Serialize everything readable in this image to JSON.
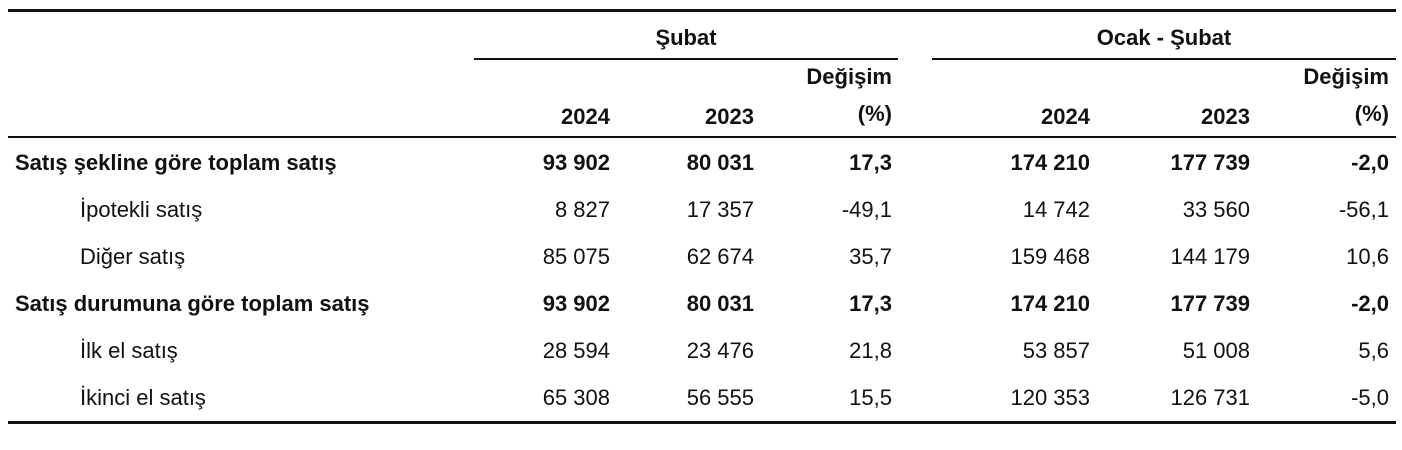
{
  "header": {
    "group1": "Şubat",
    "group2": "Ocak - Şubat",
    "year_a": "2024",
    "year_b": "2023",
    "change_line1": "Değişim",
    "change_line2": "(%)"
  },
  "rows": [
    {
      "label": "Satış şekline göre toplam satış",
      "bold": true,
      "indent": false,
      "values": [
        "93 902",
        "80 031",
        "17,3",
        "174 210",
        "177 739",
        "-2,0"
      ]
    },
    {
      "label": "İpotekli satış",
      "bold": false,
      "indent": true,
      "values": [
        "8 827",
        "17 357",
        "-49,1",
        "14 742",
        "33 560",
        "-56,1"
      ]
    },
    {
      "label": "Diğer satış",
      "bold": false,
      "indent": true,
      "values": [
        "85 075",
        "62 674",
        "35,7",
        "159 468",
        "144 179",
        "10,6"
      ]
    },
    {
      "label": "Satış durumuna göre toplam satış",
      "bold": true,
      "indent": false,
      "values": [
        "93 902",
        "80 031",
        "17,3",
        "174 210",
        "177 739",
        "-2,0"
      ]
    },
    {
      "label": "İlk el satış",
      "bold": false,
      "indent": true,
      "values": [
        "28 594",
        "23 476",
        "21,8",
        "53 857",
        "51 008",
        "5,6"
      ]
    },
    {
      "label": "İkinci el satış",
      "bold": false,
      "indent": true,
      "values": [
        "65 308",
        "56 555",
        "15,5",
        "120 353",
        "126 731",
        "-5,0"
      ]
    }
  ]
}
